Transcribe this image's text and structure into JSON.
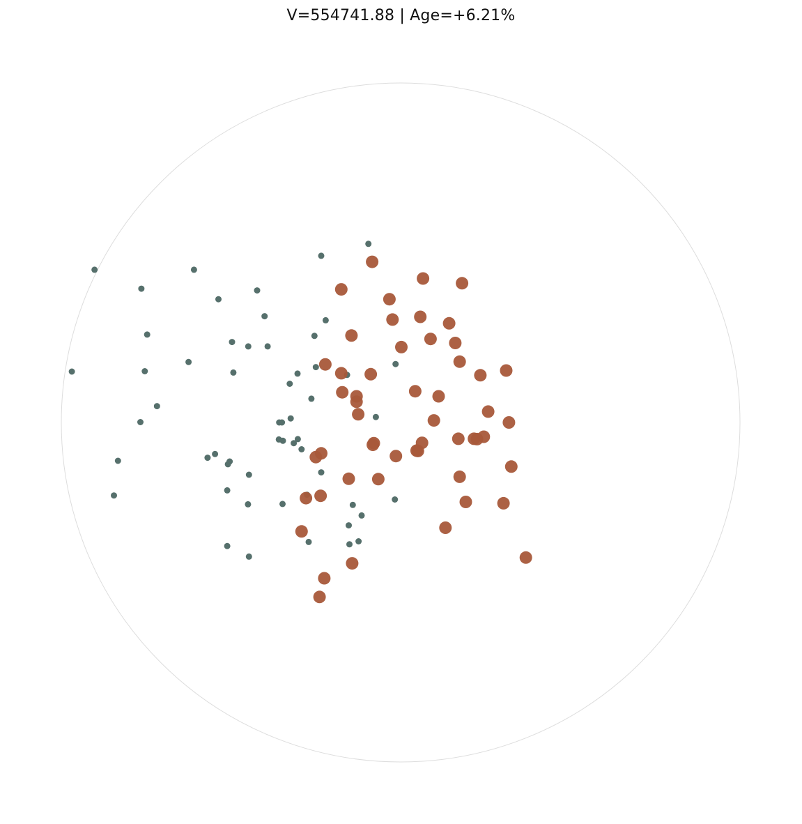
{
  "chart_data": {
    "type": "scatter",
    "title": "V=554741.88 | Age=+6.21%",
    "xlabel": "",
    "ylabel": "",
    "xlim": [
      -1,
      1
    ],
    "ylim": [
      -1,
      1
    ],
    "boundary": "circle",
    "grid": false,
    "legend": "none",
    "colors": {
      "series_a": "#56706c",
      "series_b": "#a8583a",
      "boundary": "#dddddd"
    },
    "series": [
      {
        "color": "#56706c",
        "marker": "small",
        "x": [
          -0.902,
          -0.969,
          -0.764,
          -0.747,
          -0.754,
          -0.718,
          -0.767,
          -0.833,
          -0.845,
          -0.609,
          -0.625,
          -0.569,
          -0.511,
          -0.45,
          -0.511,
          -0.447,
          -0.547,
          -0.509,
          -0.504,
          -0.447,
          -0.537,
          -0.497,
          -0.401,
          -0.423,
          -0.493,
          -0.449,
          -0.392,
          -0.327,
          -0.324,
          -0.315,
          -0.359,
          -0.254,
          -0.221,
          -0.292,
          -0.234,
          -0.358,
          -0.35,
          -0.303,
          -0.347,
          -0.276,
          -0.348,
          -0.141,
          -0.115,
          -0.153,
          -0.158,
          -0.263,
          -0.271,
          -0.095,
          -0.234,
          -0.25,
          -0.304,
          -0.073,
          -0.017,
          -0.015,
          -0.124,
          -0.151
        ],
        "y": [
          0.45,
          0.15,
          0.394,
          0.259,
          0.151,
          0.048,
          0.001,
          -0.113,
          -0.215,
          0.45,
          0.178,
          -0.104,
          -0.2,
          -0.241,
          -0.364,
          -0.395,
          -0.093,
          -0.123,
          -0.115,
          -0.154,
          0.363,
          0.237,
          0.313,
          0.389,
          0.147,
          0.224,
          0.224,
          0.114,
          0.012,
          -0.061,
          -0.05,
          0.255,
          0.301,
          -0.079,
          -0.147,
          0.0,
          0.0,
          -0.049,
          -0.054,
          -0.213,
          -0.24,
          -0.243,
          -0.274,
          -0.303,
          0.14,
          0.07,
          -0.352,
          0.526,
          0.491,
          0.163,
          0.144,
          0.016,
          -0.227,
          0.172,
          -0.35,
          -0.359
        ]
      },
      {
        "color": "#a8583a",
        "marker": "large",
        "x": [
          -0.222,
          -0.13,
          -0.234,
          -0.236,
          -0.279,
          -0.292,
          -0.145,
          -0.175,
          -0.13,
          -0.088,
          -0.125,
          -0.079,
          -0.172,
          -0.082,
          -0.153,
          -0.143,
          -0.033,
          0.002,
          -0.066,
          0.043,
          -0.014,
          -0.024,
          -0.084,
          -0.175,
          -0.25,
          -0.225,
          -0.239,
          0.058,
          0.143,
          0.088,
          0.066,
          0.161,
          0.181,
          0.174,
          0.112,
          0.098,
          0.063,
          0.047,
          0.051,
          0.174,
          0.216,
          0.235,
          0.258,
          0.311,
          0.17,
          0.319,
          0.326,
          0.132,
          0.225,
          0.245,
          0.192,
          0.303,
          0.369
        ],
        "y": [
          0.171,
          0.077,
          -0.091,
          -0.216,
          -0.223,
          -0.321,
          0.256,
          0.145,
          0.061,
          0.142,
          0.024,
          -0.061,
          0.089,
          -0.066,
          -0.166,
          -0.415,
          0.363,
          0.222,
          -0.167,
          0.092,
          -0.099,
          0.303,
          0.473,
          0.392,
          -0.102,
          -0.459,
          -0.514,
          0.311,
          0.292,
          0.246,
          0.424,
          0.234,
          0.41,
          0.179,
          0.077,
          0.006,
          -0.06,
          -0.083,
          -0.084,
          -0.16,
          -0.048,
          0.139,
          0.032,
          0.153,
          -0.048,
          0.0,
          -0.13,
          -0.31,
          -0.049,
          -0.042,
          -0.234,
          -0.238,
          -0.398
        ]
      }
    ]
  }
}
